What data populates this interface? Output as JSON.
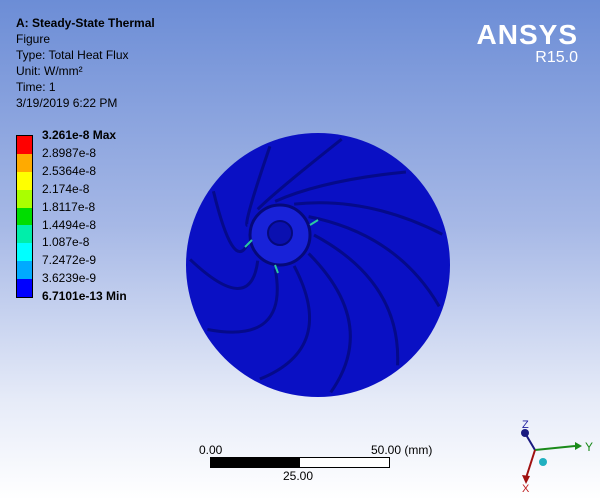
{
  "header": {
    "title": "A: Steady-State Thermal",
    "subtitle": "Figure",
    "type": "Type: Total Heat Flux",
    "unit": "Unit: W/mm²",
    "time": "Time: 1",
    "timestamp": "3/19/2019 6:22 PM"
  },
  "logo": {
    "name": "ANSYS",
    "version": "R15.0"
  },
  "legend": {
    "labels": [
      "3.261e-8 Max",
      "2.8987e-8",
      "2.5364e-8",
      "2.174e-8",
      "1.8117e-8",
      "1.4494e-8",
      "1.087e-8",
      "7.2472e-9",
      "3.6239e-9",
      "6.7101e-13 Min"
    ],
    "colors": [
      "#ff0000",
      "#ffaa00",
      "#ffff00",
      "#aaff00",
      "#00dd00",
      "#00eeaa",
      "#00ffff",
      "#00aaff",
      "#0000ff"
    ]
  },
  "scale_bar": {
    "start": "0.00",
    "end": "50.00 (mm)",
    "mid": "25.00"
  },
  "triad": {
    "x": "X",
    "y": "Y",
    "z": "Z"
  },
  "model": {
    "color": "#0a12c8"
  }
}
